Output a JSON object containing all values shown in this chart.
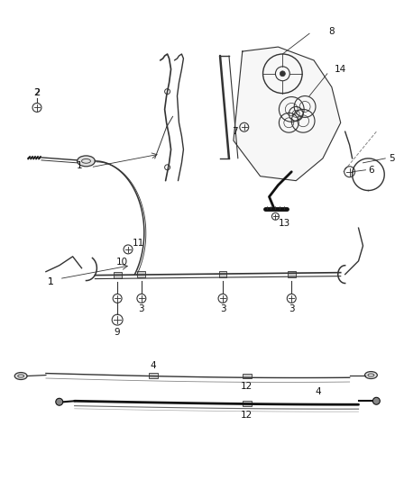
{
  "bg_color": "#ffffff",
  "line_color": "#333333",
  "dark_color": "#111111",
  "fig_width": 4.38,
  "fig_height": 5.33,
  "dpi": 100
}
